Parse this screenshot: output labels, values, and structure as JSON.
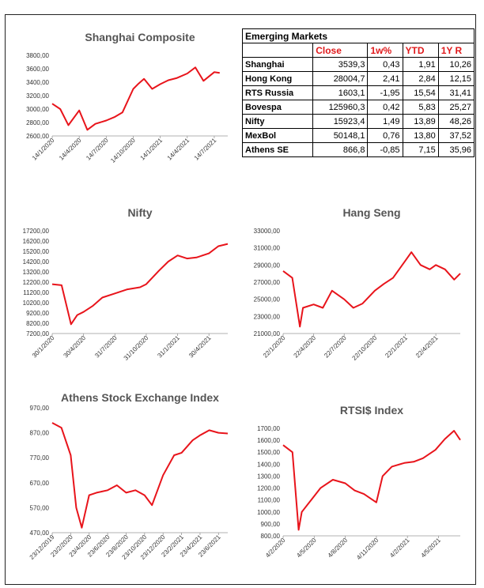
{
  "table": {
    "title": "Emerging Markets",
    "headers": [
      "Close",
      "1w%",
      "YTD",
      "1Y R"
    ],
    "rows": [
      {
        "name": "Shanghai",
        "close": "3539,3",
        "w1": "0,43",
        "ytd": "1,91",
        "y1": "10,26"
      },
      {
        "name": "Hong Kong",
        "close": "28004,7",
        "w1": "2,41",
        "ytd": "2,84",
        "y1": "12,15"
      },
      {
        "name": "RTS Russia",
        "close": "1603,1",
        "w1": "-1,95",
        "ytd": "15,54",
        "y1": "31,41"
      },
      {
        "name": "Bovespa",
        "close": "125960,3",
        "w1": "0,42",
        "ytd": "5,83",
        "y1": "25,27"
      },
      {
        "name": "Nifty",
        "close": "15923,4",
        "w1": "1,49",
        "ytd": "13,89",
        "y1": "48,26"
      },
      {
        "name": "MexBol",
        "close": "50148,1",
        "w1": "0,76",
        "ytd": "13,80",
        "y1": "37,52"
      },
      {
        "name": "Athens SE",
        "close": "866,8",
        "w1": "-0,85",
        "ytd": "7,15",
        "y1": "35,96"
      }
    ]
  },
  "chart_data": [
    {
      "id": "shanghai",
      "type": "line",
      "title": "Shanghai Composite",
      "line_color": "#e8141b",
      "ylim": [
        2600,
        3800
      ],
      "yticks": [
        "2600,00",
        "2800,00",
        "3000,00",
        "3200,00",
        "3400,00",
        "3600,00",
        "3800,00"
      ],
      "xticks": [
        "14/1/2020",
        "14/4/2020",
        "14/7/2020",
        "14/10/2020",
        "14/1/2021",
        "14/4/2021",
        "14/7/2021"
      ],
      "x": [
        0,
        0.3,
        0.6,
        1.0,
        1.3,
        1.6,
        2.0,
        2.3,
        2.6,
        3.0,
        3.2,
        3.4,
        3.7,
        4.0,
        4.3,
        4.6,
        5.0,
        5.3,
        5.6,
        6.0,
        6.2
      ],
      "y": [
        3080,
        3000,
        2760,
        2980,
        2690,
        2780,
        2830,
        2880,
        2950,
        3300,
        3380,
        3450,
        3300,
        3370,
        3430,
        3460,
        3530,
        3620,
        3420,
        3550,
        3539
      ]
    },
    {
      "id": "nifty",
      "type": "line",
      "title": "Nifty",
      "line_color": "#e8141b",
      "ylim": [
        7200,
        17200
      ],
      "yticks": [
        "7200,00",
        "8200,00",
        "9200,00",
        "10200,00",
        "11200,00",
        "12200,00",
        "13200,00",
        "14200,00",
        "15200,00",
        "16200,00",
        "17200,00"
      ],
      "xticks": [
        "30/1/2020",
        "30/4/2020",
        "31/7/2020",
        "31/10/2020",
        "31/1/2021",
        "30/4/2021"
      ],
      "x": [
        0,
        0.3,
        0.6,
        0.8,
        1.0,
        1.3,
        1.6,
        2.0,
        2.4,
        2.8,
        3.0,
        3.4,
        3.7,
        4.0,
        4.3,
        4.6,
        5.0,
        5.3,
        5.6
      ],
      "y": [
        12000,
        11900,
        8100,
        9000,
        9300,
        9900,
        10700,
        11100,
        11500,
        11700,
        12000,
        13300,
        14200,
        14800,
        14500,
        14600,
        15000,
        15700,
        15923
      ]
    },
    {
      "id": "hangseng",
      "type": "line",
      "title": "Hang Seng",
      "line_color": "#e8141b",
      "ylim": [
        21000,
        33000
      ],
      "yticks": [
        "21000,00",
        "23000,00",
        "25000,00",
        "27000,00",
        "29000,00",
        "31000,00",
        "33000,00"
      ],
      "xticks": [
        "22/1/2020",
        "22/4/2020",
        "22/7/2020",
        "22/10/2020",
        "22/1/2021",
        "22/4/2021"
      ],
      "x": [
        0,
        0.3,
        0.55,
        0.65,
        1.0,
        1.3,
        1.6,
        2.0,
        2.3,
        2.6,
        3.0,
        3.3,
        3.6,
        4.0,
        4.2,
        4.5,
        4.8,
        5.0,
        5.3,
        5.6,
        5.8
      ],
      "y": [
        28300,
        27500,
        21800,
        24000,
        24400,
        24000,
        26000,
        25000,
        24000,
        24500,
        26000,
        26800,
        27500,
        29500,
        30500,
        29000,
        28500,
        29000,
        28500,
        27300,
        28004
      ]
    },
    {
      "id": "athens",
      "type": "line",
      "title": "Athens Stock Exchange Index",
      "line_color": "#e8141b",
      "ylim": [
        470,
        970
      ],
      "yticks": [
        "470,00",
        "570,00",
        "670,00",
        "770,00",
        "870,00",
        "970,00"
      ],
      "xticks": [
        "23/12/2019",
        "23/2/2020",
        "23/4/2020",
        "23/6/2020",
        "23/8/2020",
        "23/10/2020",
        "23/12/2020",
        "23/2/2021",
        "23/4/2021",
        "23/6/2021"
      ],
      "x": [
        0,
        0.5,
        1.0,
        1.3,
        1.6,
        2.0,
        2.4,
        3.0,
        3.5,
        4.0,
        4.5,
        5.0,
        5.4,
        6.0,
        6.6,
        7.0,
        7.6,
        8.0,
        8.5,
        9.0,
        9.5
      ],
      "y": [
        910,
        890,
        780,
        570,
        490,
        620,
        630,
        640,
        660,
        630,
        640,
        620,
        580,
        700,
        780,
        790,
        840,
        860,
        880,
        870,
        867
      ]
    },
    {
      "id": "rtsi",
      "type": "line",
      "title": "RTSI$ Index",
      "line_color": "#e8141b",
      "ylim": [
        800,
        1700
      ],
      "yticks": [
        "800,00",
        "900,00",
        "1000,00",
        "1100,00",
        "1200,00",
        "1300,00",
        "1400,00",
        "1500,00",
        "1600,00",
        "1700,00"
      ],
      "xticks": [
        "4/2/2020",
        "4/5/2020",
        "4/8/2020",
        "4/11/2020",
        "4/2/2021",
        "4/5/2021"
      ],
      "x": [
        0,
        0.3,
        0.5,
        0.6,
        0.9,
        1.2,
        1.6,
        2.0,
        2.3,
        2.6,
        3.0,
        3.2,
        3.5,
        3.9,
        4.2,
        4.5,
        4.9,
        5.2,
        5.5,
        5.7
      ],
      "y": [
        1560,
        1500,
        850,
        1000,
        1100,
        1200,
        1270,
        1240,
        1180,
        1150,
        1080,
        1300,
        1380,
        1410,
        1420,
        1450,
        1520,
        1610,
        1680,
        1603
      ]
    }
  ]
}
